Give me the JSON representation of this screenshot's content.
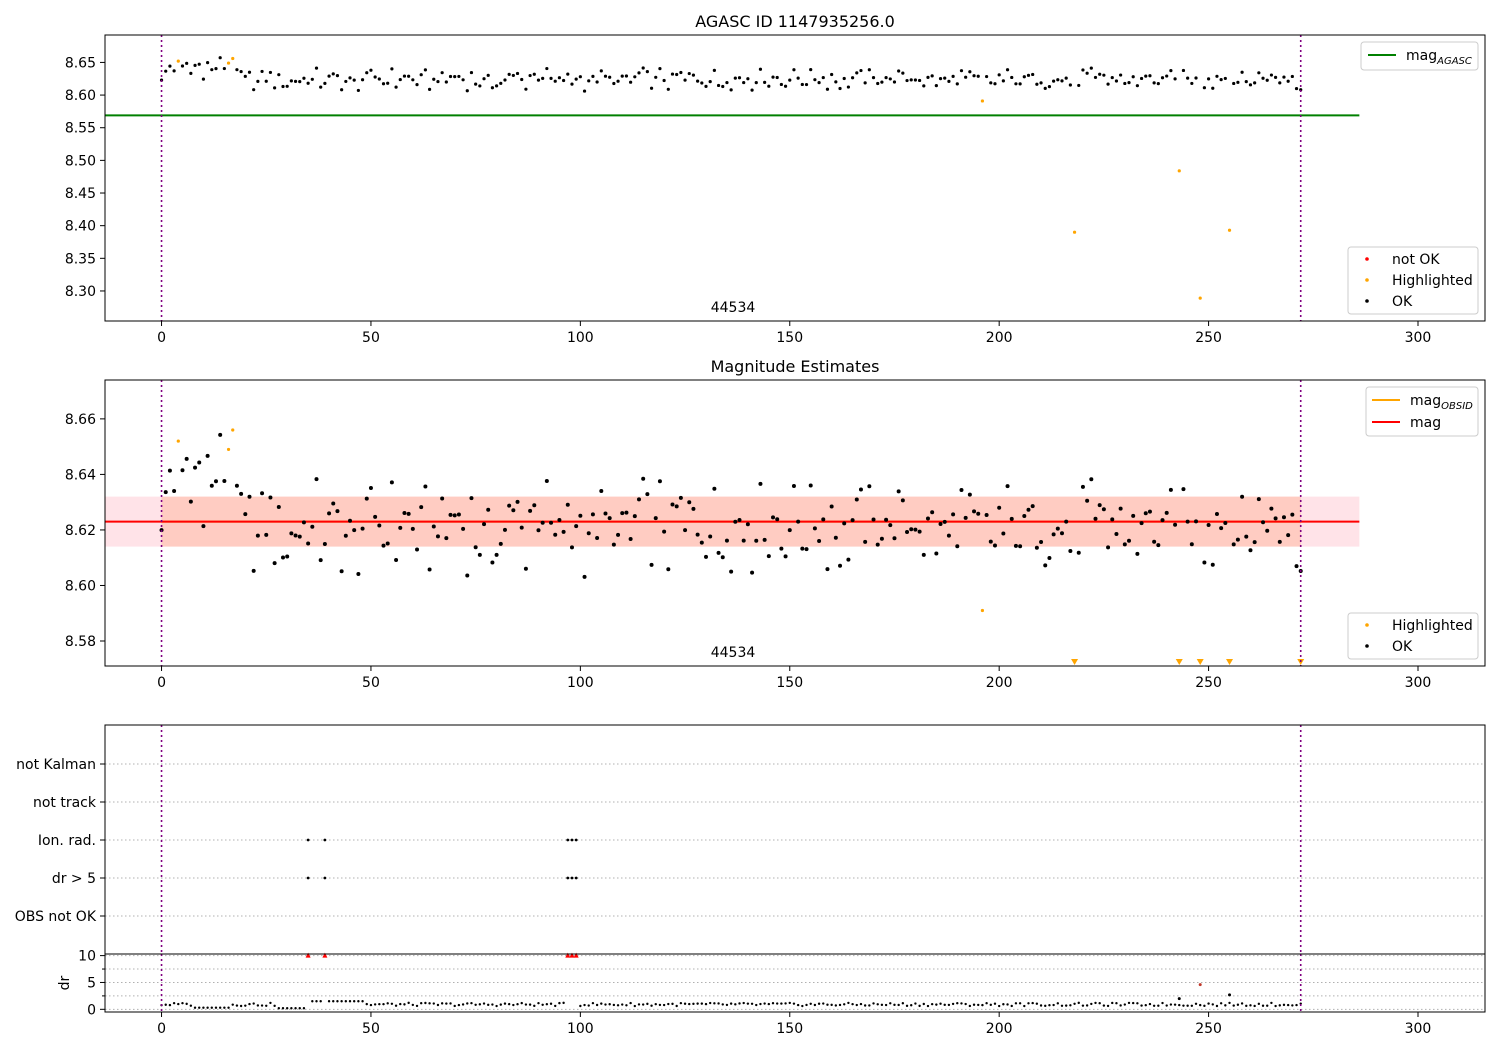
{
  "figure": {
    "title_top": "AGASC ID 1147935256.0",
    "title_mid": "Magnitude Estimates",
    "obsid_label": "44534"
  },
  "colors": {
    "ok": "#000000",
    "highlighted": "#ffa500",
    "not_ok": "#ff0000",
    "mag_agasc": "#008000",
    "mag": "#ff0000",
    "mag_obsid": "#ffa500",
    "band_outer": "#ffc0cb",
    "band_inner": "#ffa07a",
    "vline": "#800080",
    "grid": "#b0b0b0"
  },
  "chart_data": [
    {
      "id": "agasc",
      "type": "scatter",
      "title": "AGASC ID 1147935256.0",
      "xlim": [
        -13.5,
        316
      ],
      "ylim": [
        8.254,
        8.692
      ],
      "x_ticks": [
        0,
        50,
        100,
        150,
        200,
        250,
        300
      ],
      "y_ticks": [
        8.3,
        8.35,
        8.4,
        8.45,
        8.5,
        8.55,
        8.6,
        8.65
      ],
      "y_tick_labels": [
        "8.30",
        "8.35",
        "8.40",
        "8.45",
        "8.50",
        "8.55",
        "8.60",
        "8.65"
      ],
      "hline": {
        "name": "mag_AGASC",
        "y": 8.569,
        "x": [
          -13.5,
          286
        ]
      },
      "vlines": [
        0,
        272
      ],
      "highlighted_points": [
        [
          4,
          8.652
        ],
        [
          16,
          8.649
        ],
        [
          17,
          8.656
        ],
        [
          196,
          8.591
        ],
        [
          218,
          8.39
        ],
        [
          243,
          8.484
        ],
        [
          248,
          8.289
        ],
        [
          255,
          8.393
        ]
      ],
      "not_ok_points": [],
      "annotation": "44534",
      "legends": [
        {
          "placement": "top-right",
          "entries": [
            {
              "label": "mag",
              "sub": "AGASC",
              "marker": "line",
              "color": "#008000"
            }
          ]
        },
        {
          "placement": "bottom-right",
          "entries": [
            {
              "label": "not OK",
              "marker": "dot",
              "color": "#ff0000"
            },
            {
              "label": "Highlighted",
              "marker": "dot",
              "color": "#ffa500"
            },
            {
              "label": "OK",
              "marker": "dot",
              "color": "#000000"
            }
          ]
        }
      ]
    },
    {
      "id": "estimates",
      "type": "scatter",
      "title": "Magnitude Estimates",
      "xlim": [
        -13.5,
        316
      ],
      "ylim": [
        8.571,
        8.674
      ],
      "x_ticks": [
        0,
        50,
        100,
        150,
        200,
        250,
        300
      ],
      "y_ticks": [
        8.58,
        8.6,
        8.62,
        8.64,
        8.66
      ],
      "y_tick_labels": [
        "8.58",
        "8.60",
        "8.62",
        "8.64",
        "8.66"
      ],
      "hline": {
        "name": "mag",
        "y": 8.623,
        "x": [
          -13.5,
          286
        ]
      },
      "obsid_segment": {
        "name": "mag_OBSID",
        "y": 8.623,
        "x": [
          0,
          272
        ]
      },
      "band_outer": {
        "y": [
          8.614,
          8.632
        ],
        "x": [
          -13.5,
          286
        ]
      },
      "band_inner": {
        "y": [
          8.614,
          8.632
        ],
        "x": [
          0,
          272
        ]
      },
      "vlines": [
        0,
        272
      ],
      "highlighted_points": [
        [
          4,
          8.652
        ],
        [
          16,
          8.649
        ],
        [
          17,
          8.656
        ],
        [
          196,
          8.591
        ]
      ],
      "below_range_markers": [
        218,
        243,
        248,
        255,
        272
      ],
      "annotation": "44534",
      "legends": [
        {
          "placement": "top-right",
          "entries": [
            {
              "label": "mag",
              "sub": "OBSID",
              "marker": "line",
              "color": "#ffa500"
            },
            {
              "label": "mag",
              "marker": "line",
              "color": "#ff0000"
            }
          ]
        },
        {
          "placement": "bottom-right",
          "entries": [
            {
              "label": "Highlighted",
              "marker": "dot",
              "color": "#ffa500"
            },
            {
              "label": "OK",
              "marker": "dot",
              "color": "#000000"
            }
          ]
        }
      ]
    },
    {
      "id": "flags",
      "type": "scatter",
      "xlim": [
        -13.5,
        316
      ],
      "categories": [
        "not Kalman",
        "not track",
        "Ion. rad.",
        "dr > 5",
        "OBS not OK"
      ],
      "points": {
        "Ion. rad.": [
          35,
          39,
          97,
          98,
          99
        ],
        "dr > 5": [
          35,
          39,
          97,
          98,
          99
        ]
      },
      "vlines": [
        0,
        272
      ]
    },
    {
      "id": "dr",
      "type": "scatter",
      "ylabel": "dr",
      "xlim": [
        -13.5,
        316
      ],
      "ylim": [
        -0.5,
        10.3
      ],
      "x_ticks": [
        0,
        50,
        100,
        150,
        200,
        250,
        300
      ],
      "y_ticks": [
        0,
        5,
        10
      ],
      "clipped_markers": [
        35,
        39,
        97,
        98,
        99
      ],
      "outliers": [
        [
          248,
          4.6
        ],
        [
          255,
          2.7
        ],
        [
          243,
          2.0
        ]
      ],
      "vlines": [
        0,
        272
      ]
    }
  ]
}
